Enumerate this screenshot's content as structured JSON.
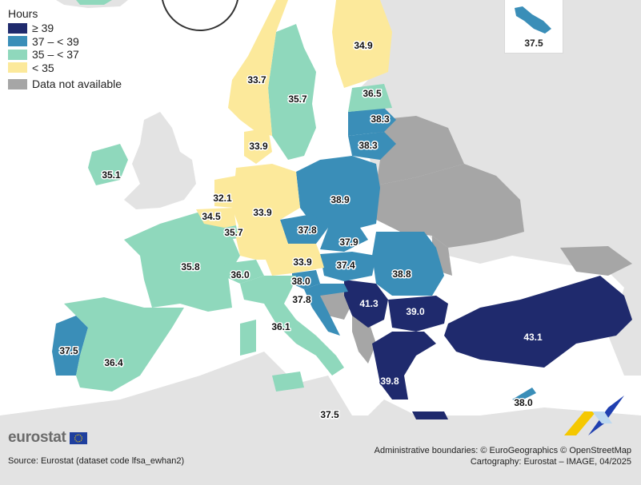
{
  "legend": {
    "title": "Hours",
    "items": [
      {
        "label": "≥ 39",
        "color": "#1f2a6d"
      },
      {
        "label": "37 – < 39",
        "color": "#3a8eb8"
      },
      {
        "label": "35 – < 37",
        "color": "#8fd8bc"
      },
      {
        "label": "< 35",
        "color": "#fce99b"
      },
      {
        "label": "Data not available",
        "color": "#a6a6a6"
      }
    ]
  },
  "colors": {
    "ge39": "#1f2a6d",
    "c37_39": "#3a8eb8",
    "c35_37": "#8fd8bc",
    "lt35": "#fce99b",
    "na": "#a6a6a6",
    "nonEU": "#e3e3e3",
    "sea": "#ffffff"
  },
  "values": {
    "portugal": "37.5",
    "spain": "36.4",
    "france": "35.8",
    "ireland": "35.1",
    "belgium": "34.5",
    "netherlands": "32.1",
    "luxembourg": "35.7",
    "germany": "33.9",
    "denmark": "33.9",
    "norway": "33.7",
    "sweden": "35.7",
    "finland": "34.9",
    "estonia": "36.5",
    "latvia": "38.3",
    "lithuania": "38.3",
    "poland": "38.9",
    "czechia": "37.8",
    "slovakia": "37.9",
    "austria": "33.9",
    "switzerland": "36.0",
    "hungary": "37.4",
    "slovenia": "38.0",
    "croatia": "37.8",
    "romania": "38.8",
    "serbia": "41.3",
    "bulgaria": "39.0",
    "italy": "36.1",
    "malta_main": "37.5",
    "greece": "39.8",
    "turkey": "43.1",
    "cyprus": "38.0",
    "malta_inset": "37.5"
  },
  "footer": {
    "logo_text": "eurostat",
    "source": "Source: Eurostat (dataset code lfsa_ewhan2)",
    "boundaries": "Administrative boundaries: © EuroGeographics © OpenStreetMap",
    "cartography": "Cartography: Eurostat – IMAGE, 04/2025"
  }
}
